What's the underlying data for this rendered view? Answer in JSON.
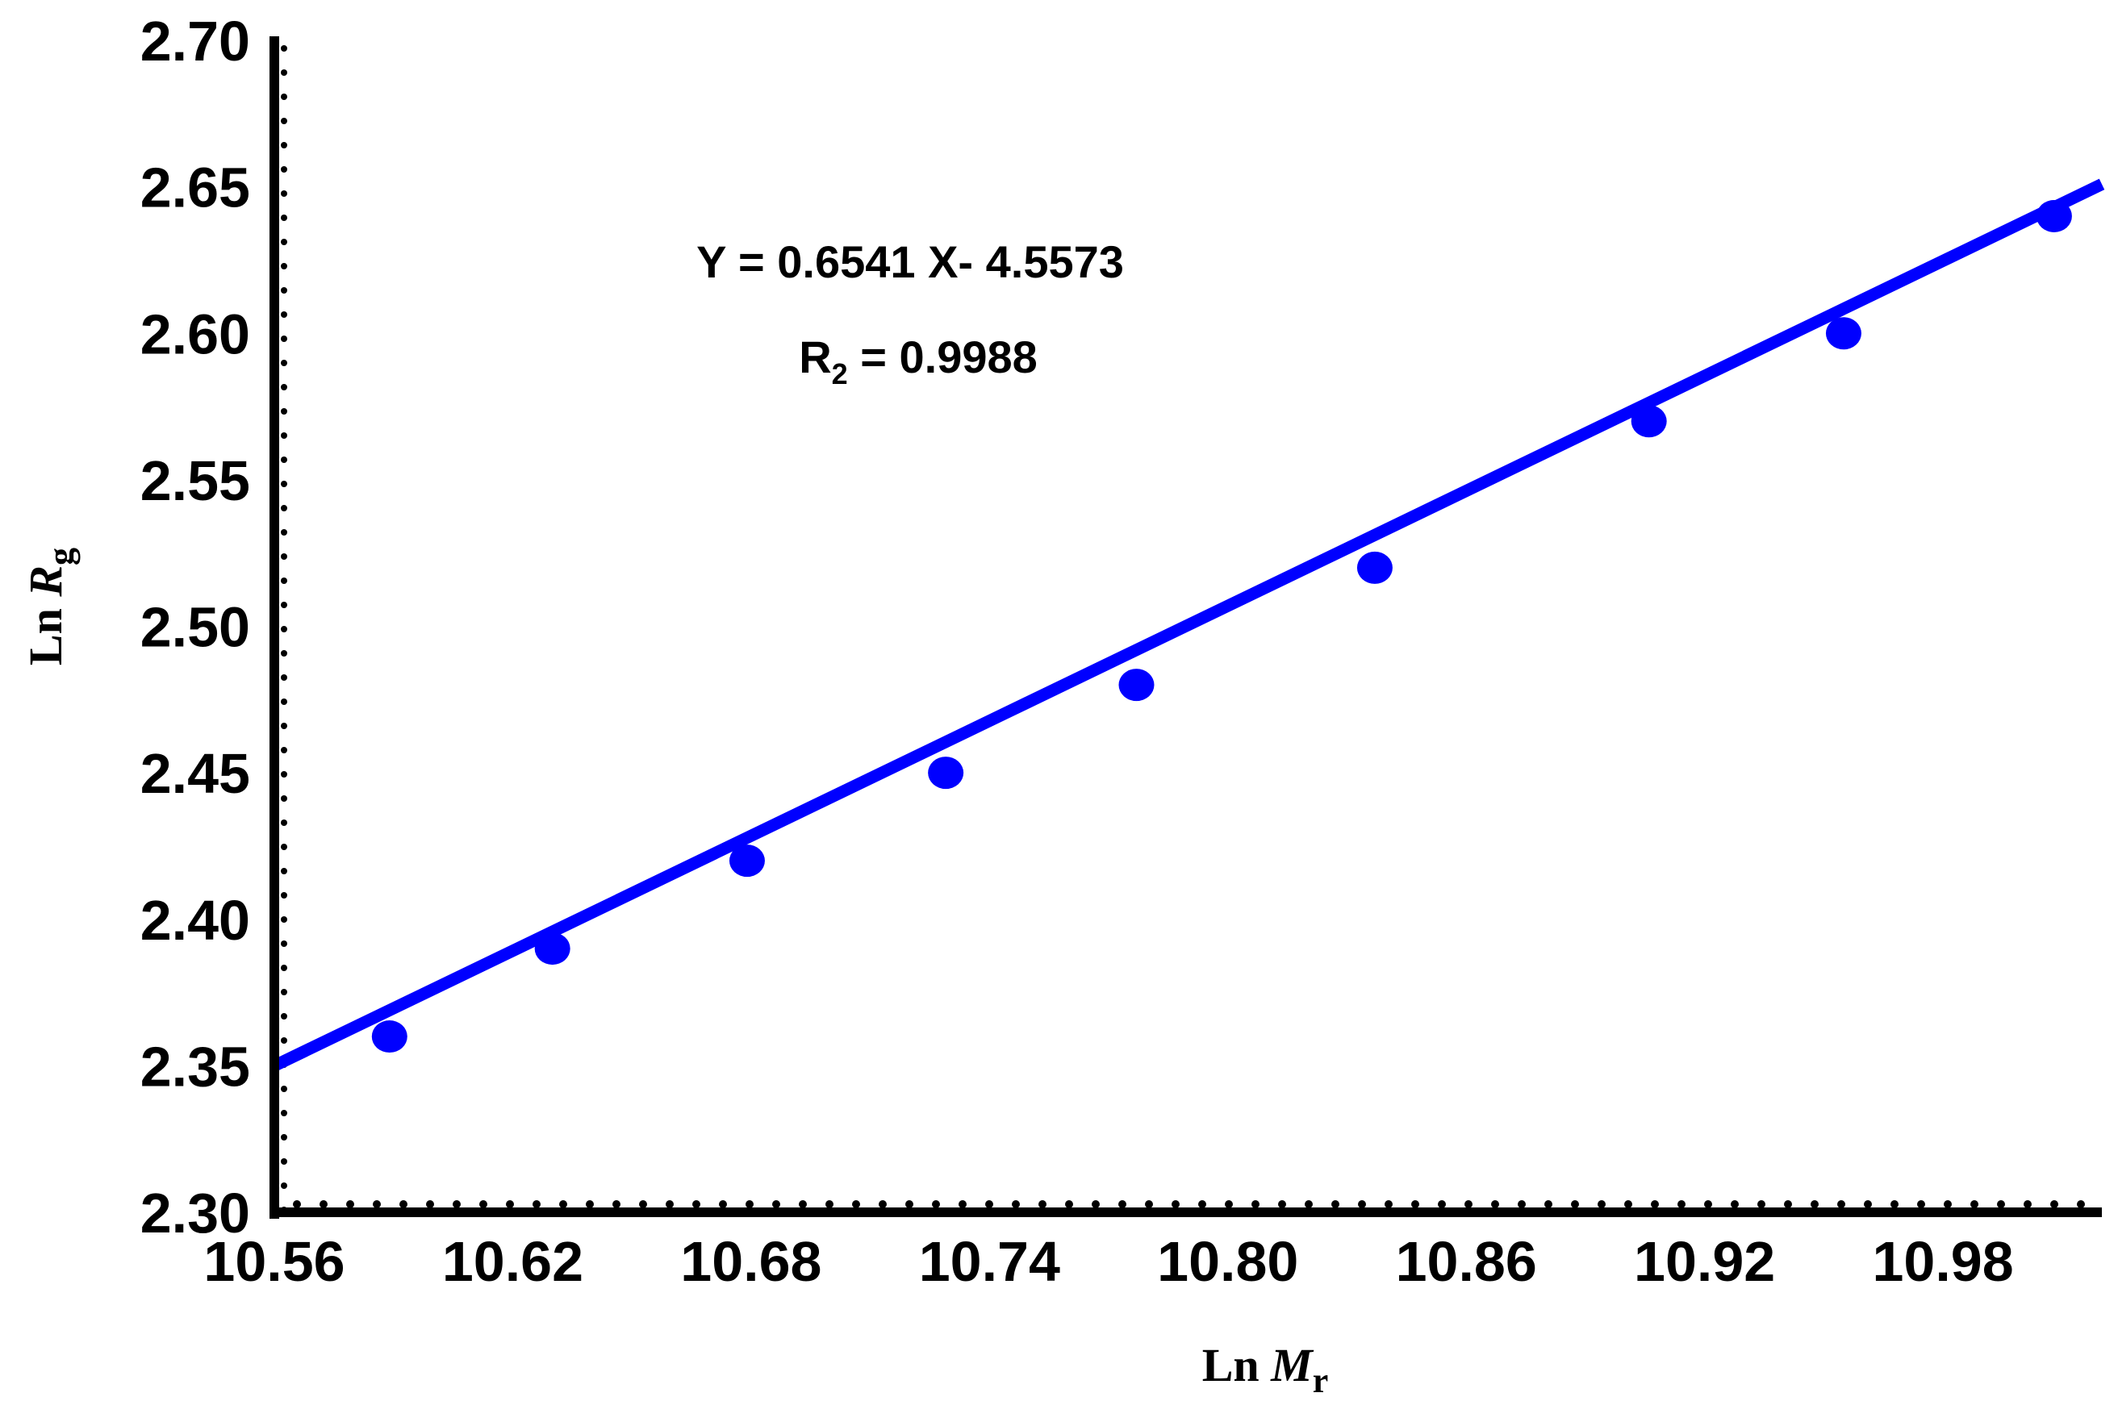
{
  "chart_data": {
    "type": "scatter",
    "xlabel": {
      "prefix": "Ln ",
      "symbol": "M",
      "sub": "r"
    },
    "ylabel": {
      "prefix": "Ln ",
      "symbol": "R",
      "sub": "g"
    },
    "xlim": [
      10.56,
      11.02
    ],
    "ylim": [
      2.3,
      2.7
    ],
    "xticks": [
      "10.56",
      "10.62",
      "10.68",
      "10.74",
      "10.80",
      "10.86",
      "10.92",
      "10.98"
    ],
    "yticks": [
      "2.30",
      "2.35",
      "2.40",
      "2.45",
      "2.50",
      "2.55",
      "2.60",
      "2.65",
      "2.70"
    ],
    "series": [
      {
        "x": [
          10.589,
          10.63,
          10.679,
          10.729,
          10.777,
          10.837,
          10.906,
          10.955,
          11.008
        ],
        "y": [
          2.36,
          2.39,
          2.42,
          2.45,
          2.48,
          2.52,
          2.57,
          2.6,
          2.64
        ],
        "color": "#0000ff",
        "marker": "circle"
      }
    ],
    "fit_line": {
      "slope": 0.6541,
      "intercept": -4.5573,
      "color": "#0000ff"
    },
    "annotations": {
      "equation": "Y = 0.6541 X- 4.5573",
      "r2_main": "R",
      "r2_sub": "2",
      "r2_value": " = 0.9988"
    },
    "grid": false
  }
}
